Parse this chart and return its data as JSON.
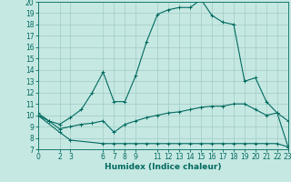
{
  "xlabel": "Humidex (Indice chaleur)",
  "xlim": [
    0,
    23
  ],
  "ylim": [
    7,
    20
  ],
  "yticks": [
    7,
    8,
    9,
    10,
    11,
    12,
    13,
    14,
    15,
    16,
    17,
    18,
    19,
    20
  ],
  "xticks": [
    0,
    2,
    3,
    6,
    7,
    8,
    9,
    11,
    12,
    13,
    14,
    15,
    16,
    17,
    18,
    19,
    20,
    21,
    22,
    23
  ],
  "bg_color": "#c6e8e2",
  "grid_color": "#a0ccc4",
  "line_color": "#006a60",
  "line1_x": [
    0,
    1,
    2,
    3,
    4,
    5,
    6,
    7,
    8,
    9,
    10,
    11,
    12,
    13,
    14,
    15,
    16,
    17,
    18,
    19,
    20,
    21,
    22,
    23
  ],
  "line1_y": [
    10.2,
    9.5,
    9.2,
    9.8,
    10.5,
    12.0,
    13.8,
    11.2,
    11.2,
    13.5,
    16.5,
    18.9,
    19.3,
    19.5,
    19.5,
    20.2,
    18.8,
    18.2,
    18.0,
    13.0,
    13.3,
    11.2,
    10.2,
    7.2
  ],
  "line2_x": [
    0,
    2,
    3,
    6,
    7,
    8,
    9,
    10,
    11,
    12,
    13,
    14,
    15,
    16,
    17,
    18,
    19,
    20,
    21,
    22,
    23
  ],
  "line2_y": [
    10.0,
    8.5,
    7.8,
    7.5,
    7.5,
    7.5,
    7.5,
    7.5,
    7.5,
    7.5,
    7.5,
    7.5,
    7.5,
    7.5,
    7.5,
    7.5,
    7.5,
    7.5,
    7.5,
    7.5,
    7.2
  ],
  "line3_x": [
    0,
    1,
    2,
    3,
    4,
    5,
    6,
    7,
    8,
    9,
    10,
    11,
    12,
    13,
    14,
    15,
    16,
    17,
    18,
    19,
    20,
    21,
    22,
    23
  ],
  "line3_y": [
    10.0,
    9.5,
    8.8,
    9.0,
    9.2,
    9.3,
    9.5,
    8.5,
    9.2,
    9.5,
    9.8,
    10.0,
    10.2,
    10.3,
    10.5,
    10.7,
    10.8,
    10.8,
    11.0,
    11.0,
    10.5,
    10.0,
    10.2,
    9.5
  ],
  "xlabel_fontsize": 6.5,
  "tick_fontsize": 5.5
}
